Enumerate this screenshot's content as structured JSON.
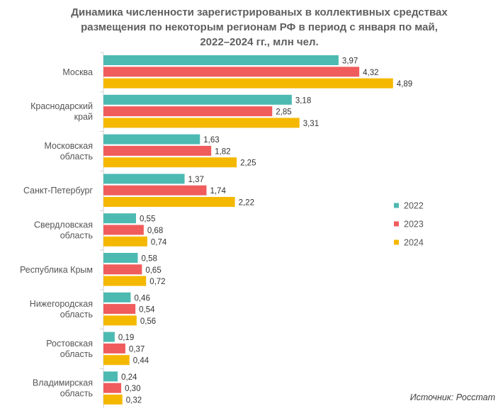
{
  "chart_data": {
    "type": "bar",
    "orientation": "horizontal",
    "title_lines": [
      "Динамика численности зарегистрированых в коллективных средствах",
      "размещения по некоторым регионам РФ в период с января по май,",
      "2022–2024 гг., млн чел."
    ],
    "categories": [
      [
        "Москва"
      ],
      [
        "Краснодарский",
        "край"
      ],
      [
        "Московская",
        "область"
      ],
      [
        "Санкт-Петербург"
      ],
      [
        "Свердловская",
        "область"
      ],
      [
        "Республика  Крым"
      ],
      [
        "Нижегородская",
        "область"
      ],
      [
        "Ростовская",
        "область"
      ],
      [
        "Владимирская",
        "область"
      ]
    ],
    "series": [
      {
        "name": "2022",
        "color": "#4dbab2",
        "values": [
          3.97,
          3.18,
          1.63,
          1.37,
          0.55,
          0.58,
          0.46,
          0.19,
          0.24
        ],
        "labels": [
          "3,97",
          "3,18",
          "1,63",
          "1,37",
          "0,55",
          "0,58",
          "0,46",
          "0,19",
          "0,24"
        ]
      },
      {
        "name": "2023",
        "color": "#f05c5c",
        "values": [
          4.32,
          2.85,
          1.82,
          1.74,
          0.68,
          0.65,
          0.54,
          0.37,
          0.3
        ],
        "labels": [
          "4,32",
          "2,85",
          "1,82",
          "1,74",
          "0,68",
          "0,65",
          "0,54",
          "0,37",
          "0,30"
        ]
      },
      {
        "name": "2024",
        "color": "#f5b800",
        "values": [
          4.89,
          3.31,
          2.25,
          2.22,
          0.74,
          0.72,
          0.56,
          0.44,
          0.32
        ],
        "labels": [
          "4,89",
          "3,31",
          "2,25",
          "2,22",
          "0,74",
          "0,72",
          "0,56",
          "0,44",
          "0,32"
        ]
      }
    ],
    "xlim": [
      0,
      5.5
    ],
    "gridlines": false,
    "legend_position": "right"
  },
  "source": "Источник: Росстат"
}
